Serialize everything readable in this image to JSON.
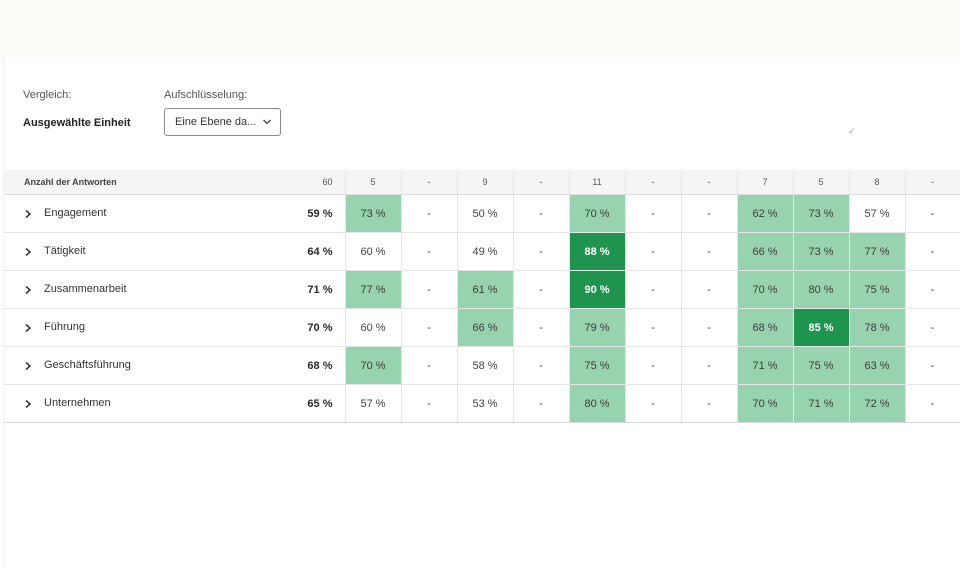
{
  "controls": {
    "compare_label": "Vergleich:",
    "compare_value": "Ausgewählte Einheit",
    "breakdown_label": "Aufschlüsselung:",
    "breakdown_value": "Eine Ebene da...",
    "stray_mark": "✓"
  },
  "header": {
    "label": "Anzahl der Antworten",
    "overall": "60",
    "cols": [
      "5",
      "-",
      "9",
      "-",
      "11",
      "-",
      "-",
      "7",
      "5",
      "8",
      "-"
    ]
  },
  "rows": [
    {
      "label": "Engagement",
      "overall": "59 %",
      "cells": [
        [
          "73 %",
          "light"
        ],
        [
          "-",
          "none"
        ],
        [
          "50 %",
          "none"
        ],
        [
          "-",
          "none"
        ],
        [
          "70 %",
          "light"
        ],
        [
          "-",
          "none"
        ],
        [
          "-",
          "none"
        ],
        [
          "62 %",
          "light"
        ],
        [
          "73 %",
          "light"
        ],
        [
          "57 %",
          "none"
        ],
        [
          "-",
          "none"
        ]
      ]
    },
    {
      "label": "Tätigkeit",
      "overall": "64 %",
      "cells": [
        [
          "60 %",
          "none"
        ],
        [
          "-",
          "none"
        ],
        [
          "49 %",
          "none"
        ],
        [
          "-",
          "none"
        ],
        [
          "88 %",
          "dark"
        ],
        [
          "-",
          "none"
        ],
        [
          "-",
          "none"
        ],
        [
          "66 %",
          "light"
        ],
        [
          "73 %",
          "light"
        ],
        [
          "77 %",
          "light"
        ],
        [
          "-",
          "none"
        ]
      ]
    },
    {
      "label": "Zusammenarbeit",
      "overall": "71 %",
      "cells": [
        [
          "77 %",
          "light"
        ],
        [
          "-",
          "none"
        ],
        [
          "61 %",
          "light"
        ],
        [
          "-",
          "none"
        ],
        [
          "90 %",
          "dark"
        ],
        [
          "-",
          "none"
        ],
        [
          "-",
          "none"
        ],
        [
          "70 %",
          "light"
        ],
        [
          "80 %",
          "light"
        ],
        [
          "75 %",
          "light"
        ],
        [
          "-",
          "none"
        ]
      ]
    },
    {
      "label": "Führung",
      "overall": "70 %",
      "cells": [
        [
          "60 %",
          "none"
        ],
        [
          "-",
          "none"
        ],
        [
          "66 %",
          "light"
        ],
        [
          "-",
          "none"
        ],
        [
          "79 %",
          "light"
        ],
        [
          "-",
          "none"
        ],
        [
          "-",
          "none"
        ],
        [
          "68 %",
          "light"
        ],
        [
          "85 %",
          "dark"
        ],
        [
          "78 %",
          "light"
        ],
        [
          "-",
          "none"
        ]
      ]
    },
    {
      "label": "Geschäftsführung",
      "overall": "68 %",
      "cells": [
        [
          "70 %",
          "light"
        ],
        [
          "-",
          "none"
        ],
        [
          "58 %",
          "none"
        ],
        [
          "-",
          "none"
        ],
        [
          "75 %",
          "light"
        ],
        [
          "-",
          "none"
        ],
        [
          "-",
          "none"
        ],
        [
          "71 %",
          "light"
        ],
        [
          "75 %",
          "light"
        ],
        [
          "63 %",
          "light"
        ],
        [
          "-",
          "none"
        ]
      ]
    },
    {
      "label": "Unternehmen",
      "overall": "65 %",
      "cells": [
        [
          "57 %",
          "none"
        ],
        [
          "-",
          "none"
        ],
        [
          "53 %",
          "none"
        ],
        [
          "-",
          "none"
        ],
        [
          "80 %",
          "light"
        ],
        [
          "-",
          "none"
        ],
        [
          "-",
          "none"
        ],
        [
          "70 %",
          "light"
        ],
        [
          "71 %",
          "light"
        ],
        [
          "72 %",
          "light"
        ],
        [
          "-",
          "none"
        ]
      ]
    }
  ],
  "colors": {
    "light": "#96d3ae",
    "dark": "#1f944f",
    "none": "#ffffff"
  },
  "icons": {
    "row_toggle": "chevron-right-icon",
    "dropdown": "chevron-down-icon"
  }
}
